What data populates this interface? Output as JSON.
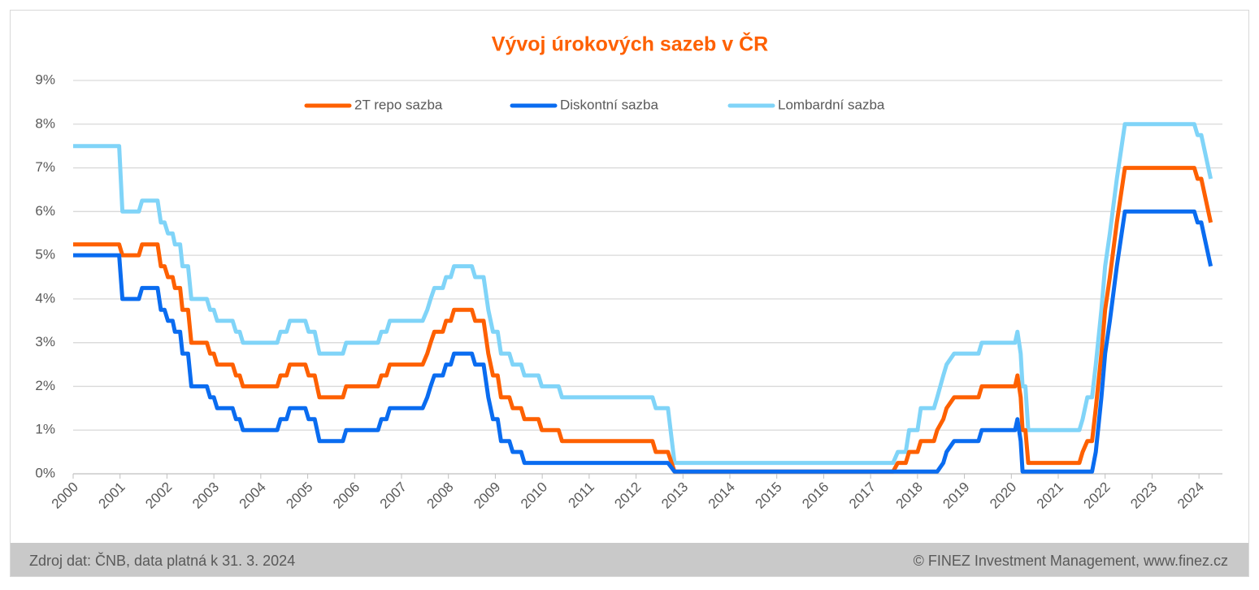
{
  "chart_data": {
    "type": "line",
    "title": "Vývoj úrokových sazeb v ČR",
    "x": [
      2000.0,
      2000.98,
      2001.05,
      2001.4,
      2001.47,
      2001.8,
      2001.87,
      2001.95,
      2002.02,
      2002.12,
      2002.17,
      2002.28,
      2002.33,
      2002.45,
      2002.52,
      2002.85,
      2002.92,
      2003.0,
      2003.07,
      2003.4,
      2003.47,
      2003.55,
      2003.62,
      2004.35,
      2004.42,
      2004.55,
      2004.62,
      2004.95,
      2005.02,
      2005.15,
      2005.25,
      2005.75,
      2005.82,
      2006.5,
      2006.57,
      2006.68,
      2006.75,
      2007.45,
      2007.55,
      2007.62,
      2007.7,
      2007.88,
      2007.95,
      2008.05,
      2008.12,
      2008.5,
      2008.57,
      2008.75,
      2008.85,
      2008.95,
      2009.05,
      2009.12,
      2009.3,
      2009.37,
      2009.55,
      2009.62,
      2009.92,
      2009.99,
      2010.35,
      2010.42,
      2012.35,
      2012.42,
      2012.68,
      2012.82,
      2017.48,
      2017.58,
      2017.75,
      2017.82,
      2018.0,
      2018.07,
      2018.35,
      2018.42,
      2018.55,
      2018.62,
      2018.78,
      2019.3,
      2019.37,
      2020.08,
      2020.13,
      2020.2,
      2020.24,
      2020.3,
      2020.36,
      2021.45,
      2021.52,
      2021.62,
      2021.72,
      2021.8,
      2021.92,
      2022.0,
      2022.1,
      2022.25,
      2022.42,
      2023.9,
      2023.97,
      2024.05,
      2024.25
    ],
    "series": [
      {
        "name": "2T repo sazba",
        "color": "#fe6000",
        "values": [
          5.25,
          5.25,
          5.0,
          5.0,
          5.25,
          5.25,
          4.75,
          4.75,
          4.5,
          4.5,
          4.25,
          4.25,
          3.75,
          3.75,
          3.0,
          3.0,
          2.75,
          2.75,
          2.5,
          2.5,
          2.25,
          2.25,
          2.0,
          2.0,
          2.25,
          2.25,
          2.5,
          2.5,
          2.25,
          2.25,
          1.75,
          1.75,
          2.0,
          2.0,
          2.25,
          2.25,
          2.5,
          2.5,
          2.75,
          3.0,
          3.25,
          3.25,
          3.5,
          3.5,
          3.75,
          3.75,
          3.5,
          3.5,
          2.75,
          2.25,
          2.25,
          1.75,
          1.75,
          1.5,
          1.5,
          1.25,
          1.25,
          1.0,
          1.0,
          0.75,
          0.75,
          0.5,
          0.5,
          0.05,
          0.05,
          0.25,
          0.25,
          0.5,
          0.5,
          0.75,
          0.75,
          1.0,
          1.25,
          1.5,
          1.75,
          1.75,
          2.0,
          2.0,
          2.25,
          1.75,
          1.0,
          1.0,
          0.25,
          0.25,
          0.5,
          0.75,
          0.75,
          1.5,
          2.75,
          3.75,
          4.5,
          5.75,
          7.0,
          7.0,
          6.75,
          6.75,
          5.75
        ]
      },
      {
        "name": "Diskontní sazba",
        "color": "#0a6cf0",
        "values": [
          5.0,
          5.0,
          4.0,
          4.0,
          4.25,
          4.25,
          3.75,
          3.75,
          3.5,
          3.5,
          3.25,
          3.25,
          2.75,
          2.75,
          2.0,
          2.0,
          1.75,
          1.75,
          1.5,
          1.5,
          1.25,
          1.25,
          1.0,
          1.0,
          1.25,
          1.25,
          1.5,
          1.5,
          1.25,
          1.25,
          0.75,
          0.75,
          1.0,
          1.0,
          1.25,
          1.25,
          1.5,
          1.5,
          1.75,
          2.0,
          2.25,
          2.25,
          2.5,
          2.5,
          2.75,
          2.75,
          2.5,
          2.5,
          1.75,
          1.25,
          1.25,
          0.75,
          0.75,
          0.5,
          0.5,
          0.25,
          0.25,
          0.25,
          0.25,
          0.25,
          0.25,
          0.25,
          0.25,
          0.05,
          0.05,
          0.05,
          0.05,
          0.05,
          0.05,
          0.05,
          0.05,
          0.05,
          0.25,
          0.5,
          0.75,
          0.75,
          1.0,
          1.0,
          1.25,
          0.75,
          0.05,
          0.05,
          0.05,
          0.05,
          0.05,
          0.05,
          0.05,
          0.5,
          1.75,
          2.75,
          3.5,
          4.75,
          6.0,
          6.0,
          5.75,
          5.75,
          4.75
        ]
      },
      {
        "name": "Lombardní sazba",
        "color": "#80d4f8",
        "values": [
          7.5,
          7.5,
          6.0,
          6.0,
          6.25,
          6.25,
          5.75,
          5.75,
          5.5,
          5.5,
          5.25,
          5.25,
          4.75,
          4.75,
          4.0,
          4.0,
          3.75,
          3.75,
          3.5,
          3.5,
          3.25,
          3.25,
          3.0,
          3.0,
          3.25,
          3.25,
          3.5,
          3.5,
          3.25,
          3.25,
          2.75,
          2.75,
          3.0,
          3.0,
          3.25,
          3.25,
          3.5,
          3.5,
          3.75,
          4.0,
          4.25,
          4.25,
          4.5,
          4.5,
          4.75,
          4.75,
          4.5,
          4.5,
          3.75,
          3.25,
          3.25,
          2.75,
          2.75,
          2.5,
          2.5,
          2.25,
          2.25,
          2.0,
          2.0,
          1.75,
          1.75,
          1.5,
          1.5,
          0.25,
          0.25,
          0.5,
          0.5,
          1.0,
          1.0,
          1.5,
          1.5,
          1.75,
          2.25,
          2.5,
          2.75,
          2.75,
          3.0,
          3.0,
          3.25,
          2.75,
          2.0,
          2.0,
          1.0,
          1.0,
          1.25,
          1.75,
          1.75,
          2.5,
          3.75,
          4.75,
          5.5,
          6.75,
          8.0,
          8.0,
          7.75,
          7.75,
          6.75
        ]
      }
    ],
    "xlim": [
      2000,
      2024.5
    ],
    "xticks": [
      2000,
      2001,
      2002,
      2003,
      2004,
      2005,
      2006,
      2007,
      2008,
      2009,
      2010,
      2011,
      2012,
      2013,
      2014,
      2015,
      2016,
      2017,
      2018,
      2019,
      2020,
      2021,
      2022,
      2023,
      2024
    ],
    "ylim": [
      0,
      9
    ],
    "yticks": [
      {
        "value": 0,
        "label": "0%"
      },
      {
        "value": 1,
        "label": "1%"
      },
      {
        "value": 2,
        "label": "2%"
      },
      {
        "value": 3,
        "label": "3%"
      },
      {
        "value": 4,
        "label": "4%"
      },
      {
        "value": 5,
        "label": "5%"
      },
      {
        "value": 6,
        "label": "6%"
      },
      {
        "value": 7,
        "label": "7%"
      },
      {
        "value": 8,
        "label": "8%"
      },
      {
        "value": 9,
        "label": "9%"
      }
    ],
    "grid": true
  },
  "footer": {
    "source": "Zdroj dat: ČNB, data platná k 31. 3. 2024",
    "copyright": "© FINEZ Investment Management, www.finez.cz"
  }
}
